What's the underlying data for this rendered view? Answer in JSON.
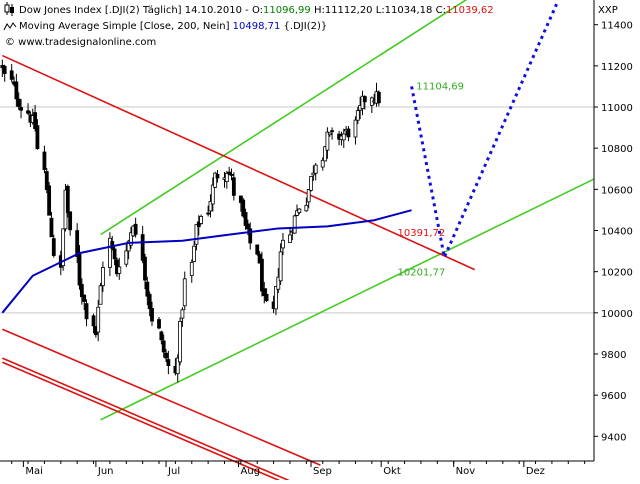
{
  "header": {
    "line1_prefix": "Dow Jones Index [.DJI(2)  Täglich]  14.10.2010 - ",
    "o_label": "O:",
    "o_value": "11096,99",
    "h_part": " H:11112,20",
    "l_part": " L:11034,18",
    "c_label": " C:",
    "c_value": "11039,62",
    "line2_prefix": "Moving Average Simple [Close, 200, Nein]  ",
    "ma_value": "10498,71",
    "ma_suffix": " {.DJI(2)}",
    "line3": "© www.tradesignalonline.com"
  },
  "colors": {
    "up": "#008000",
    "down": "#e01010",
    "ma": "#0000c0",
    "channel_green": "#44cc22",
    "channel_red": "#dd1111",
    "projection": "#1010dd",
    "grid": "#c8c8c8",
    "candle": "#000000"
  },
  "chart_data": {
    "type": "candlestick",
    "instrument": "Dow Jones Index [.DJI(2)",
    "axis_label": "XXP",
    "y_ticks": [
      9400,
      9600,
      9800,
      10000,
      10200,
      10400,
      10600,
      10800,
      11000,
      11200,
      11400
    ],
    "y_tick_labels": [
      "9400",
      "9600",
      "9800",
      "10000",
      "10200",
      "10400",
      "10600",
      "10800",
      "11000",
      "11200",
      "11400"
    ],
    "ylim": [
      9280,
      11520
    ],
    "x_months": [
      "Mai",
      "Jun",
      "Jul",
      "Aug",
      "Sep",
      "Okt",
      "Nov",
      "Dez"
    ],
    "x_month_dates": [
      "2010-05-01",
      "2010-06-01",
      "2010-07-01",
      "2010-08-01",
      "2010-09-01",
      "2010-10-01",
      "2010-11-01",
      "2010-12-01"
    ],
    "xlim": [
      "2010-04-21",
      "2010-12-31"
    ],
    "grid_horizontal": [
      10000,
      11000
    ],
    "candle_start": "2010-04-22",
    "close_path": [
      [
        0,
        11180
      ],
      [
        6,
        11000
      ],
      [
        10,
        10900
      ],
      [
        14,
        10480
      ],
      [
        17,
        10200
      ],
      [
        19,
        10600
      ],
      [
        23,
        10150
      ],
      [
        28,
        9900
      ],
      [
        32,
        10350
      ],
      [
        35,
        10200
      ],
      [
        40,
        10450
      ],
      [
        44,
        10100
      ],
      [
        48,
        9850
      ],
      [
        52,
        9700
      ],
      [
        56,
        10150
      ],
      [
        59,
        10400
      ],
      [
        62,
        10500
      ],
      [
        65,
        10660
      ],
      [
        68,
        10700
      ],
      [
        70,
        10650
      ],
      [
        73,
        10450
      ],
      [
        77,
        10300
      ],
      [
        80,
        10050
      ],
      [
        82,
        10000
      ],
      [
        85,
        10300
      ],
      [
        88,
        10430
      ],
      [
        92,
        10550
      ],
      [
        95,
        10700
      ],
      [
        99,
        10850
      ],
      [
        103,
        10860
      ],
      [
        106,
        10880
      ],
      [
        110,
        11020
      ],
      [
        112,
        11060
      ],
      [
        115,
        11040
      ]
    ],
    "moving_average": {
      "name": "Moving Average Simple [Close, 200, Nein]",
      "value": 10498.71,
      "points": [
        [
          "2010-04-22",
          10000
        ],
        [
          "2010-05-05",
          10180
        ],
        [
          "2010-05-25",
          10290
        ],
        [
          "2010-06-15",
          10340
        ],
        [
          "2010-07-08",
          10350
        ],
        [
          "2010-07-28",
          10380
        ],
        [
          "2010-08-18",
          10410
        ],
        [
          "2010-09-08",
          10420
        ],
        [
          "2010-09-28",
          10450
        ],
        [
          "2010-10-14",
          10498.71
        ]
      ]
    },
    "channel_lines": [
      {
        "color": "green",
        "points": [
          [
            "2010-06-03",
            10380
          ],
          [
            "2010-12-31",
            11920
          ]
        ]
      },
      {
        "color": "green",
        "points": [
          [
            "2010-06-03",
            9480
          ],
          [
            "2010-12-31",
            10650
          ]
        ]
      },
      {
        "color": "red",
        "points": [
          [
            "2010-04-22",
            11250
          ],
          [
            "2010-11-10",
            10210
          ]
        ]
      },
      {
        "color": "red",
        "points": [
          [
            "2010-04-22",
            9920
          ],
          [
            "2010-09-05",
            9260
          ]
        ]
      },
      {
        "color": "red",
        "points": [
          [
            "2010-04-22",
            9760
          ],
          [
            "2010-09-05",
            9100
          ]
        ]
      },
      {
        "color": "red",
        "points": [
          [
            "2010-04-22",
            9780
          ],
          [
            "2010-09-05",
            9120
          ]
        ]
      }
    ],
    "projection": {
      "style": "dotted",
      "points": [
        [
          "2010-10-14",
          11100
        ],
        [
          "2010-10-28",
          10270
        ],
        [
          "2010-12-15",
          11500
        ]
      ]
    },
    "annotations": [
      {
        "text": "11104,69",
        "date": "2010-10-16",
        "value": 11104.69,
        "color": "green"
      },
      {
        "text": "10391,72",
        "date": "2010-10-08",
        "value": 10391.72,
        "color": "red"
      },
      {
        "text": "10201,77",
        "date": "2010-10-08",
        "value": 10201.77,
        "color": "green"
      }
    ]
  }
}
